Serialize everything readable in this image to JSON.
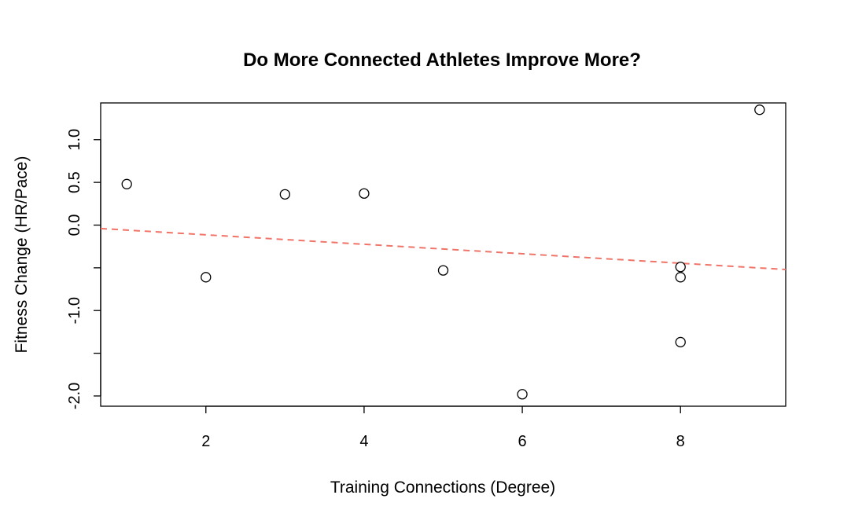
{
  "chart_data": {
    "type": "scatter",
    "title": "Do More Connected Athletes Improve More?",
    "xlabel": "Training Connections (Degree)",
    "ylabel": "Fitness Change (HR/Pace)",
    "xlim": [
      0.67,
      9.33
    ],
    "ylim": [
      -2.12,
      1.43
    ],
    "xticks": [
      2,
      4,
      6,
      8
    ],
    "xtick_labels": [
      "2",
      "4",
      "6",
      "8"
    ],
    "yticks": [
      -2.0,
      -1.5,
      -1.0,
      -0.5,
      0.0,
      0.5,
      1.0
    ],
    "ytick_labels": [
      "-2.0",
      "",
      "-1.0",
      "",
      "0.0",
      "0.5",
      "1.0"
    ],
    "points": [
      {
        "x": 1,
        "y": 0.48
      },
      {
        "x": 2,
        "y": -0.61
      },
      {
        "x": 3,
        "y": 0.36
      },
      {
        "x": 4,
        "y": 0.37
      },
      {
        "x": 5,
        "y": -0.53
      },
      {
        "x": 6,
        "y": -1.98
      },
      {
        "x": 8,
        "y": -0.49
      },
      {
        "x": 8,
        "y": -0.61
      },
      {
        "x": 8,
        "y": -1.37
      },
      {
        "x": 9,
        "y": 1.35
      }
    ],
    "trendline": {
      "x": [
        0.67,
        9.33
      ],
      "y": [
        -0.04,
        -0.52
      ]
    },
    "point_color": "#000000",
    "trendline_color": "#f07468",
    "grid": false
  }
}
